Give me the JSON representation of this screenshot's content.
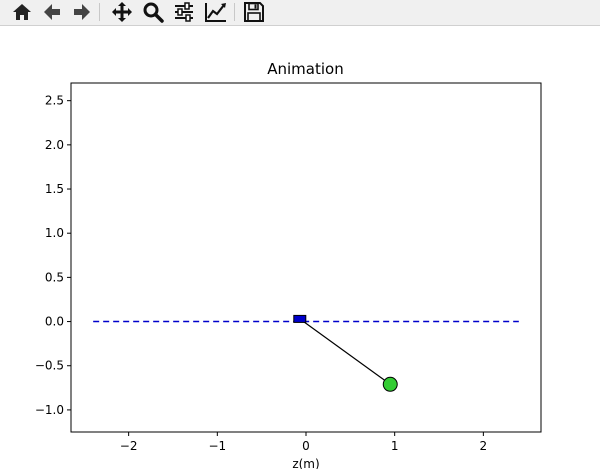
{
  "toolbar": {
    "tools": [
      {
        "name": "home-icon"
      },
      {
        "name": "back-icon"
      },
      {
        "name": "forward-icon"
      },
      {
        "name": "pan-icon"
      },
      {
        "name": "zoom-icon"
      },
      {
        "name": "configure-subplots-icon"
      },
      {
        "name": "edit-axis-icon"
      },
      {
        "name": "save-icon"
      }
    ]
  },
  "chart_data": {
    "type": "line",
    "title": "Animation",
    "xlabel": "z(m)",
    "ylabel": "",
    "xlim": [
      -2.65,
      2.65
    ],
    "ylim": [
      -1.25,
      2.7
    ],
    "x_ticks": [
      -2,
      -1,
      0,
      1,
      2
    ],
    "x_tick_labels": [
      "−2",
      "−1",
      "0",
      "1",
      "2"
    ],
    "y_ticks": [
      -1.0,
      -0.5,
      0.0,
      0.5,
      1.0,
      1.5,
      2.0,
      2.5
    ],
    "y_tick_labels": [
      "−1.0",
      "−0.5",
      "0.0",
      "0.5",
      "1.0",
      "1.5",
      "2.0",
      "2.5"
    ],
    "grid": false,
    "track": {
      "x": [
        -2.4,
        2.4
      ],
      "y": [
        0.0,
        0.0
      ],
      "color": "#0000cc",
      "style": "dashed"
    },
    "cart": {
      "x": -0.07,
      "y": 0.03,
      "color": "#0000cc"
    },
    "rod": {
      "x": [
        -0.07,
        0.95
      ],
      "y": [
        0.03,
        -0.71
      ],
      "color": "#000000"
    },
    "bob": {
      "x": 0.95,
      "y": -0.71,
      "color": "#33cc33"
    }
  }
}
